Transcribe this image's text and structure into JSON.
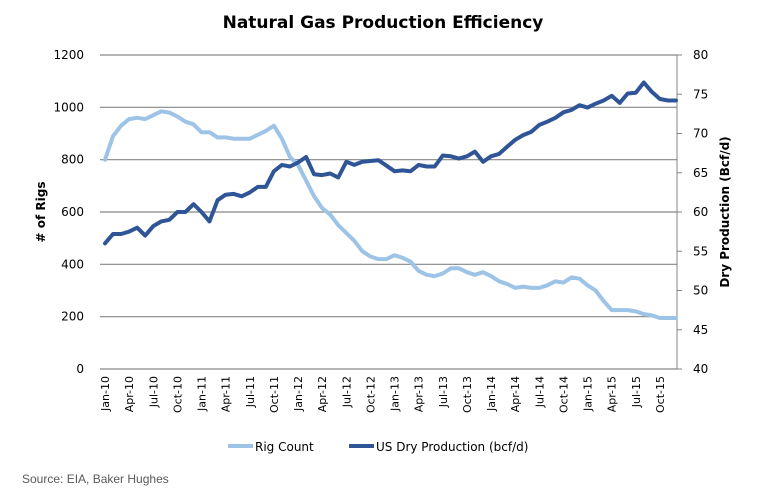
{
  "chart_data": {
    "type": "line",
    "title": "Natural Gas Production Efficiency",
    "xlabel": "",
    "ylabel": "# of Rigs",
    "y2label": "Dry Production (Bcf/d)",
    "ylim": [
      0,
      1200
    ],
    "y2lim": [
      40,
      80
    ],
    "yticks": [
      0,
      200,
      400,
      600,
      800,
      1000,
      1200
    ],
    "y2ticks": [
      40,
      45,
      50,
      55,
      60,
      65,
      70,
      75,
      80
    ],
    "grid": true,
    "legend_position": "bottom",
    "x_tick_labels": [
      "Jan-10",
      "Apr-10",
      "Jul-10",
      "Oct-10",
      "Jan-11",
      "Apr-11",
      "Jul-11",
      "Oct-11",
      "Jan-12",
      "Apr-12",
      "Jul-12",
      "Oct-12",
      "Jan-13",
      "Apr-13",
      "Jul-13",
      "Oct-13",
      "Jan-14",
      "Apr-14",
      "Jul-14",
      "Oct-14",
      "Jan-15",
      "Apr-15",
      "Jul-15",
      "Oct-15"
    ],
    "x": [
      "Jan-10",
      "Feb-10",
      "Mar-10",
      "Apr-10",
      "May-10",
      "Jun-10",
      "Jul-10",
      "Aug-10",
      "Sep-10",
      "Oct-10",
      "Nov-10",
      "Dec-10",
      "Jan-11",
      "Feb-11",
      "Mar-11",
      "Apr-11",
      "May-11",
      "Jun-11",
      "Jul-11",
      "Aug-11",
      "Sep-11",
      "Oct-11",
      "Nov-11",
      "Dec-11",
      "Jan-12",
      "Feb-12",
      "Mar-12",
      "Apr-12",
      "May-12",
      "Jun-12",
      "Jul-12",
      "Aug-12",
      "Sep-12",
      "Oct-12",
      "Nov-12",
      "Dec-12",
      "Jan-13",
      "Feb-13",
      "Mar-13",
      "Apr-13",
      "May-13",
      "Jun-13",
      "Jul-13",
      "Aug-13",
      "Sep-13",
      "Oct-13",
      "Nov-13",
      "Dec-13",
      "Jan-14",
      "Feb-14",
      "Mar-14",
      "Apr-14",
      "May-14",
      "Jun-14",
      "Jul-14",
      "Aug-14",
      "Sep-14",
      "Oct-14",
      "Nov-14",
      "Dec-14",
      "Jan-15",
      "Feb-15",
      "Mar-15",
      "Apr-15",
      "May-15",
      "Jun-15",
      "Jul-15",
      "Aug-15",
      "Sep-15",
      "Oct-15",
      "Nov-15",
      "Dec-15"
    ],
    "series": [
      {
        "name": "Rig Count",
        "axis": "left",
        "color": "#9DC3E6",
        "values": [
          800,
          890,
          930,
          955,
          960,
          955,
          970,
          985,
          980,
          965,
          945,
          935,
          905,
          905,
          885,
          885,
          880,
          880,
          880,
          895,
          910,
          930,
          880,
          810,
          780,
          720,
          660,
          615,
          590,
          550,
          520,
          490,
          450,
          430,
          420,
          420,
          435,
          425,
          410,
          375,
          360,
          355,
          365,
          385,
          385,
          370,
          360,
          370,
          355,
          335,
          325,
          310,
          315,
          310,
          310,
          320,
          335,
          330,
          350,
          345,
          320,
          300,
          260,
          225,
          225,
          225,
          220,
          210,
          205,
          195,
          195,
          195
        ]
      },
      {
        "name": "US Dry Production (bcf/d)",
        "axis": "right",
        "color": "#2F5597",
        "values": [
          56,
          57.2,
          57.2,
          57.5,
          58,
          57,
          58.2,
          58.8,
          59,
          60,
          60,
          61,
          60,
          58.8,
          61.5,
          62.2,
          62.3,
          62,
          62.5,
          63.2,
          63.2,
          65.2,
          66,
          65.8,
          66.3,
          67,
          64.8,
          64.7,
          64.9,
          64.4,
          66.4,
          66,
          66.4,
          66.5,
          66.6,
          65.9,
          65.2,
          65.3,
          65.2,
          66,
          65.8,
          65.8,
          67.2,
          67.1,
          66.8,
          67.1,
          67.7,
          66.4,
          67.1,
          67.4,
          68.3,
          69.2,
          69.8,
          70.2,
          71.1,
          71.5,
          72,
          72.7,
          73,
          73.6,
          73.3,
          73.8,
          74.2,
          74.8,
          73.9,
          75.1,
          75.2,
          76.5,
          75.3,
          74.4,
          74.2,
          74.2
        ]
      }
    ]
  },
  "source_note": "Source: EIA, Baker Hughes"
}
